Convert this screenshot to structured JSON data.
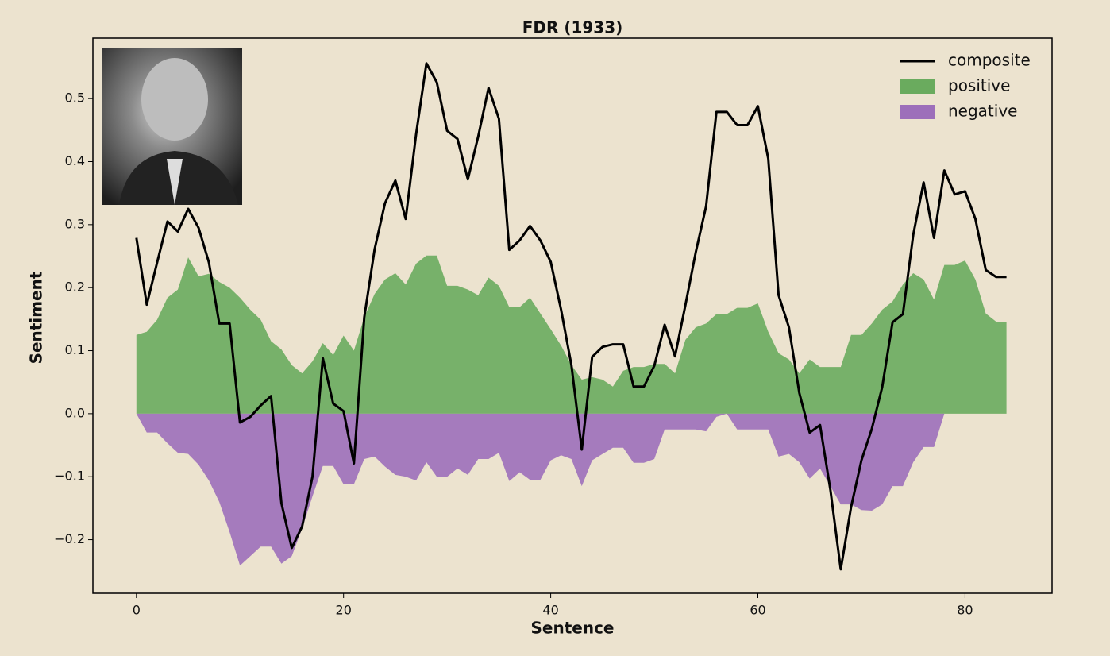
{
  "chart_data": {
    "type": "line",
    "title": "FDR (1933)",
    "xlabel": "Sentence",
    "ylabel": "Sentiment",
    "x": [
      0,
      1,
      2,
      3,
      4,
      5,
      6,
      7,
      8,
      9,
      10,
      11,
      12,
      13,
      14,
      15,
      16,
      17,
      18,
      19,
      20,
      21,
      22,
      23,
      24,
      25,
      26,
      27,
      28,
      29,
      30,
      31,
      32,
      33,
      34,
      35,
      36,
      37,
      38,
      39,
      40,
      41,
      42,
      43,
      44,
      45,
      46,
      47,
      48,
      49,
      50,
      51,
      52,
      53,
      54,
      55,
      56,
      57,
      58,
      59,
      60,
      61,
      62,
      63,
      64,
      65,
      66,
      67,
      68,
      69,
      70,
      71,
      72,
      73,
      74,
      75,
      76,
      77,
      78,
      79,
      80,
      81,
      82,
      83,
      84
    ],
    "series": [
      {
        "name": "positive",
        "color": "#6aab5e",
        "fill": true,
        "values": [
          0.125,
          0.13,
          0.149,
          0.184,
          0.197,
          0.248,
          0.218,
          0.222,
          0.209,
          0.2,
          0.184,
          0.165,
          0.149,
          0.115,
          0.102,
          0.077,
          0.064,
          0.083,
          0.112,
          0.093,
          0.124,
          0.1,
          0.153,
          0.19,
          0.213,
          0.223,
          0.205,
          0.238,
          0.251,
          0.251,
          0.203,
          0.203,
          0.197,
          0.188,
          0.216,
          0.203,
          0.169,
          0.169,
          0.184,
          0.159,
          0.134,
          0.108,
          0.077,
          0.054,
          0.058,
          0.054,
          0.043,
          0.068,
          0.074,
          0.074,
          0.079,
          0.079,
          0.064,
          0.117,
          0.137,
          0.143,
          0.158,
          0.158,
          0.168,
          0.168,
          0.175,
          0.13,
          0.096,
          0.086,
          0.064,
          0.086,
          0.074,
          0.074,
          0.074,
          0.125,
          0.125,
          0.143,
          0.165,
          0.178,
          0.205,
          0.223,
          0.213,
          0.181,
          0.236,
          0.236,
          0.243,
          0.213,
          0.159,
          0.146,
          0.146
        ]
      },
      {
        "name": "negative",
        "color": "#9d6fba",
        "fill": true,
        "values": [
          0,
          -0.03,
          -0.03,
          -0.047,
          -0.062,
          -0.064,
          -0.081,
          -0.106,
          -0.14,
          -0.188,
          -0.241,
          -0.226,
          -0.211,
          -0.211,
          -0.238,
          -0.226,
          -0.182,
          -0.131,
          -0.083,
          -0.083,
          -0.112,
          -0.112,
          -0.072,
          -0.068,
          -0.084,
          -0.097,
          -0.1,
          -0.106,
          -0.077,
          -0.1,
          -0.1,
          -0.087,
          -0.097,
          -0.072,
          -0.072,
          -0.062,
          -0.107,
          -0.093,
          -0.105,
          -0.105,
          -0.074,
          -0.066,
          -0.072,
          -0.115,
          -0.074,
          -0.064,
          -0.054,
          -0.054,
          -0.078,
          -0.078,
          -0.072,
          -0.025,
          -0.025,
          -0.025,
          -0.025,
          -0.028,
          -0.005,
          0,
          -0.025,
          -0.025,
          -0.025,
          -0.025,
          -0.068,
          -0.064,
          -0.077,
          -0.103,
          -0.087,
          -0.115,
          -0.144,
          -0.144,
          -0.153,
          -0.154,
          -0.144,
          -0.115,
          -0.115,
          -0.077,
          -0.053,
          -0.053,
          0,
          0,
          0,
          0,
          0,
          0,
          0
        ]
      },
      {
        "name": "composite",
        "color": "#000000",
        "fill": false,
        "values": [
          0.279,
          0.173,
          0.24,
          0.305,
          0.289,
          0.325,
          0.295,
          0.24,
          0.143,
          0.143,
          -0.014,
          -0.005,
          0.013,
          0.028,
          -0.142,
          -0.213,
          -0.179,
          -0.1,
          0.088,
          0.016,
          0.004,
          -0.079,
          0.153,
          0.261,
          0.334,
          0.37,
          0.309,
          0.443,
          0.556,
          0.526,
          0.449,
          0.436,
          0.372,
          0.44,
          0.517,
          0.468,
          0.26,
          0.275,
          0.298,
          0.275,
          0.241,
          0.165,
          0.077,
          -0.057,
          0.09,
          0.106,
          0.11,
          0.11,
          0.043,
          0.043,
          0.076,
          0.141,
          0.091,
          0.172,
          0.256,
          0.329,
          0.479,
          0.479,
          0.458,
          0.458,
          0.488,
          0.405,
          0.188,
          0.137,
          0.033,
          -0.03,
          -0.018,
          -0.121,
          -0.247,
          -0.148,
          -0.074,
          -0.024,
          0.042,
          0.145,
          0.158,
          0.284,
          0.367,
          0.279,
          0.386,
          0.348,
          0.353,
          0.309,
          0.228,
          0.217,
          0.217
        ]
      }
    ],
    "legend_order": [
      2,
      0,
      1
    ],
    "legend": "upper right",
    "xlim": [
      -4.2,
      88.4
    ],
    "ylim": [
      -0.285,
      0.596
    ],
    "xticks": [
      0,
      20,
      40,
      60,
      80
    ],
    "yticks": [
      {
        "value": -0.2,
        "label": "−0.2"
      },
      {
        "value": -0.1,
        "label": "−0.1"
      },
      {
        "value": 0,
        "label": "0.0"
      },
      0.1,
      0.2,
      0.3,
      0.4,
      0.5
    ]
  }
}
